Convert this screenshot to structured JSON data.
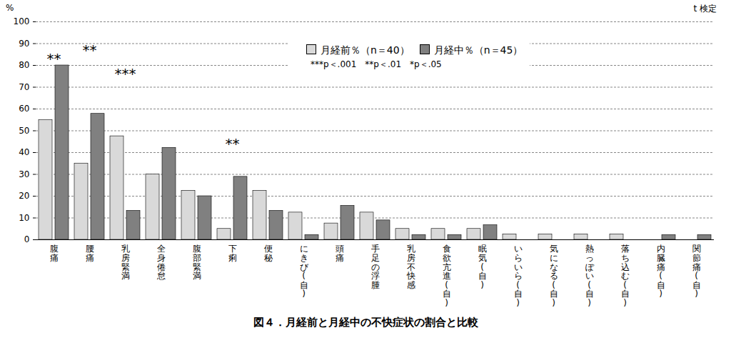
{
  "chart_data": {
    "type": "bar",
    "title": "図４．月経前と月経中の不快症状の割合と比較",
    "y_label": "%",
    "test_note": "t 検定",
    "significance_note": "***p＜.001　**p＜.01　*p＜.05",
    "categories": [
      "腹痛",
      "腰痛",
      "乳房緊満",
      "全身倦怠",
      "腹部緊満",
      "下痢",
      "便秘",
      "にきび(自)",
      "頭痛",
      "手足の浮腫",
      "乳房不快感",
      "食欲亢進(自)",
      "眠気(自)",
      "いらいら(自)",
      "気になる(自)",
      "熱っぽい(自)",
      "落ち込む(自)",
      "内臓痛(自)",
      "関節痛(自)"
    ],
    "series": [
      {
        "name": "月経前％（n＝40）",
        "color": "#d9d9d9",
        "values": [
          55,
          35,
          47.5,
          30,
          22.5,
          5,
          22.5,
          12.5,
          7.5,
          12.5,
          5,
          5,
          5,
          2.5,
          2.5,
          2.5,
          2.5,
          0,
          0
        ]
      },
      {
        "name": "月経中％（n＝45）",
        "color": "#808080",
        "values": [
          80,
          57.8,
          13.3,
          42.2,
          20,
          28.9,
          13.3,
          2.2,
          15.6,
          8.9,
          2.2,
          2.2,
          6.7,
          0,
          0,
          0,
          0,
          2.2,
          2.2
        ]
      }
    ],
    "annotations": [
      {
        "category": "腹痛",
        "y": 83,
        "text": "**"
      },
      {
        "category": "腰痛",
        "y": 87,
        "text": "**"
      },
      {
        "category": "乳房緊満",
        "y": 76,
        "text": "***"
      },
      {
        "category": "下痢",
        "y": 44,
        "text": "**"
      }
    ],
    "ylim": [
      0,
      100
    ],
    "yticks": [
      0,
      10,
      20,
      30,
      40,
      50,
      60,
      70,
      80,
      90,
      100
    ],
    "grid": true,
    "legend": "top"
  }
}
